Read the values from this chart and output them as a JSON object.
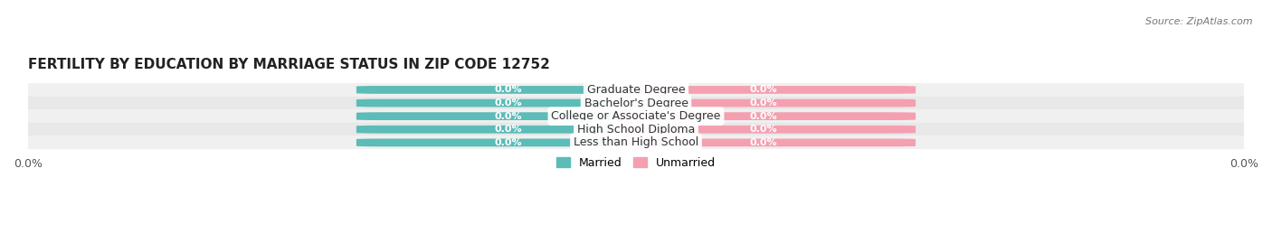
{
  "title": "FERTILITY BY EDUCATION BY MARRIAGE STATUS IN ZIP CODE 12752",
  "source": "Source: ZipAtlas.com",
  "categories": [
    "Less than High School",
    "High School Diploma",
    "College or Associate's Degree",
    "Bachelor's Degree",
    "Graduate Degree"
  ],
  "married_values": [
    0.0,
    0.0,
    0.0,
    0.0,
    0.0
  ],
  "unmarried_values": [
    0.0,
    0.0,
    0.0,
    0.0,
    0.0
  ],
  "married_color": "#5bbcb8",
  "unmarried_color": "#f4a0b0",
  "row_bg_colors": [
    "#f0f0f0",
    "#e8e8e8"
  ],
  "label_value": "0.0%",
  "title_fontsize": 11,
  "source_fontsize": 8,
  "tick_fontsize": 9,
  "label_fontsize": 8,
  "cat_fontsize": 9,
  "legend_fontsize": 9,
  "background_color": "#ffffff"
}
